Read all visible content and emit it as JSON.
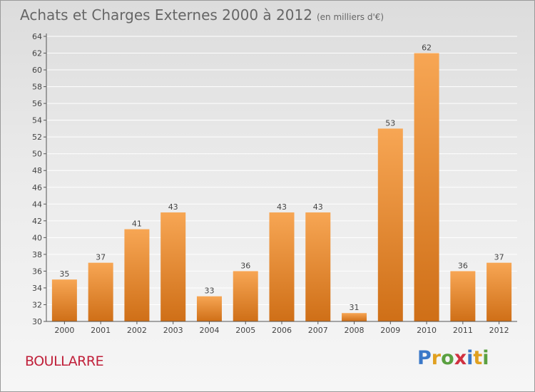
{
  "header": {
    "title": "Achats et Charges Externes 2000 à 2012",
    "subtitle": "(en milliers d'€)"
  },
  "footer": {
    "place": "BOULLARRE",
    "logo_text": "Proxiti"
  },
  "colors": {
    "bar_top": "#f7a654",
    "bar_bottom": "#cf6f17",
    "place_text": "#c0203a",
    "gridline": "#ffffff"
  },
  "chart_data": {
    "type": "bar",
    "title": "Achats et Charges Externes 2000 à 2012",
    "subtitle": "(en milliers d'€)",
    "categories": [
      "2000",
      "2001",
      "2002",
      "2003",
      "2004",
      "2005",
      "2006",
      "2007",
      "2008",
      "2009",
      "2010",
      "2011",
      "2012"
    ],
    "values": [
      35,
      37,
      41,
      43,
      33,
      36,
      43,
      43,
      31,
      53,
      62,
      36,
      37
    ],
    "ylim": [
      30,
      64
    ],
    "ytick_step": 2,
    "grid": true,
    "data_labels": true
  }
}
